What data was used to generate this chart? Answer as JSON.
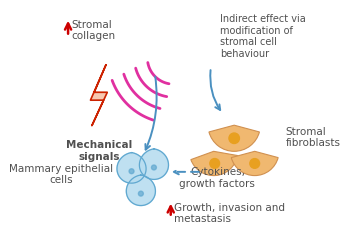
{
  "bg_color": "#ffffff",
  "texts": {
    "stromal_collagen": "Stromal\ncollagen",
    "mechanical_signals": "Mechanical\nsignals",
    "indirect_effect": "Indirect effect via\nmodification of\nstromal cell\nbehaviour",
    "stromal_fibroblasts": "Stromal\nfibroblasts",
    "mammary_epithelial": "Mammary epithelial\ncells",
    "cytokines": "Cytokines,\ngrowth factors",
    "growth_invasion": "Growth, invasion and\nmetastasis"
  },
  "colors": {
    "arrow_red": "#cc0000",
    "arrow_blue": "#4a90c0",
    "lightning_fill": "#f7c8b0",
    "lightning_stroke": "#cc2200",
    "wave_pink": "#e030a0",
    "fibroblast_fill": "#f0b870",
    "fibroblast_stroke": "#d09050",
    "fibroblast_nucleus": "#e8a020",
    "epithelial_fill": "#b8ddf0",
    "epithelial_stroke": "#60a8d0",
    "epithelial_nucleus": "#70b0d8",
    "text_dark": "#505050"
  },
  "fontsize": 7.5
}
